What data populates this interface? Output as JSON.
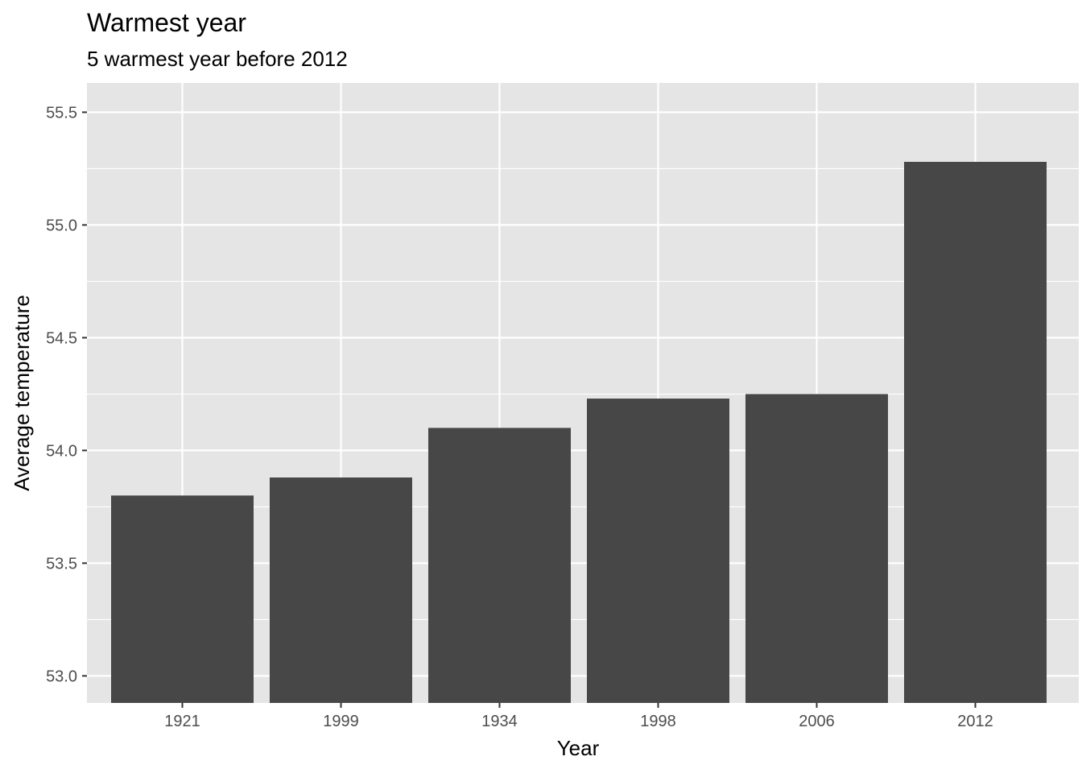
{
  "chart_data": {
    "type": "bar",
    "title": "Warmest year",
    "subtitle": "5 warmest year before 2012",
    "xlabel": "Year",
    "ylabel": "Average temperature",
    "categories": [
      "1921",
      "1999",
      "1934",
      "1998",
      "2006",
      "2012"
    ],
    "values": [
      53.8,
      53.88,
      54.1,
      54.23,
      54.25,
      55.28
    ],
    "ylim": [
      52.88,
      55.63
    ],
    "y_ticks": [
      "53.0",
      "53.5",
      "54.0",
      "54.5",
      "55.0",
      "55.5"
    ],
    "y_tick_values": [
      53.0,
      53.5,
      54.0,
      54.5,
      55.0,
      55.5
    ],
    "y_minor_values": [
      53.25,
      53.75,
      54.25,
      54.75,
      55.25
    ],
    "grid": true,
    "legend": "none",
    "colors": {
      "bar": "#474747",
      "panel": "#e5e5e5",
      "grid": "#ffffff",
      "tick_text": "#4d4d4d",
      "tick_mark": "#333333"
    }
  }
}
